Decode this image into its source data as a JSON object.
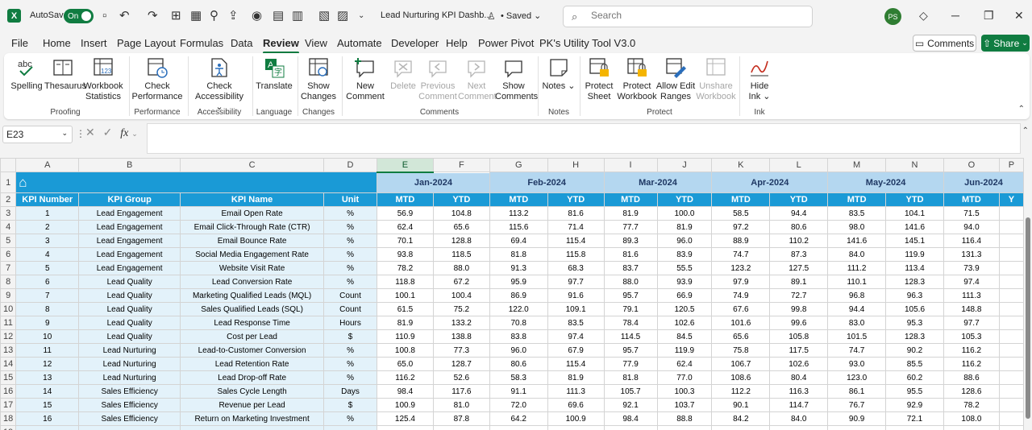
{
  "titlebar": {
    "autosave_label": "AutoSave",
    "autosave_state": "On",
    "doc_title": "Lead Nurturing KPI Dashb...",
    "saved_status": "• Saved ⌄",
    "search_placeholder": "Search",
    "avatar_initials": "PS",
    "accent_color": "#107c41"
  },
  "menu": [
    "File",
    "Home",
    "Insert",
    "Page Layout",
    "Formulas",
    "Data",
    "Review",
    "View",
    "Automate",
    "Developer",
    "Help",
    "Power Pivot",
    "PK's Utility Tool V3.0"
  ],
  "menu_active": "Review",
  "actions": {
    "comments": "Comments",
    "share": "Share"
  },
  "ribbon": {
    "buttons": [
      {
        "label": "Spelling",
        "icon": "spelling-icon",
        "enabled": true
      },
      {
        "label": "Thesaurus",
        "icon": "thesaurus-icon",
        "enabled": true
      },
      {
        "label": "Workbook Statistics",
        "icon": "workbook-statistics-icon",
        "enabled": true
      },
      {
        "label": "Check Performance",
        "icon": "check-performance-icon",
        "enabled": true
      },
      {
        "label": "Check Accessibility ⌄",
        "icon": "accessibility-icon",
        "enabled": true
      },
      {
        "label": "Translate",
        "icon": "translate-icon",
        "enabled": true
      },
      {
        "label": "Show Changes",
        "icon": "show-changes-icon",
        "enabled": true
      },
      {
        "label": "New Comment",
        "icon": "new-comment-icon",
        "enabled": true
      },
      {
        "label": "Delete",
        "icon": "delete-comment-icon",
        "enabled": false
      },
      {
        "label": "Previous Comment",
        "icon": "previous-comment-icon",
        "enabled": false
      },
      {
        "label": "Next Comment",
        "icon": "next-comment-icon",
        "enabled": false
      },
      {
        "label": "Show Comments",
        "icon": "show-comments-icon",
        "enabled": true
      },
      {
        "label": "Notes ⌄",
        "icon": "notes-icon",
        "enabled": true
      },
      {
        "label": "Protect Sheet",
        "icon": "protect-sheet-icon",
        "enabled": true
      },
      {
        "label": "Protect Workbook",
        "icon": "protect-workbook-icon",
        "enabled": true
      },
      {
        "label": "Allow Edit Ranges",
        "icon": "allow-edit-ranges-icon",
        "enabled": true
      },
      {
        "label": "Unshare Workbook",
        "icon": "unshare-workbook-icon",
        "enabled": false
      },
      {
        "label": "Hide Ink ⌄",
        "icon": "hide-ink-icon",
        "enabled": true
      }
    ],
    "groups": [
      "Proofing",
      "Performance",
      "Accessibility",
      "Language",
      "Changes",
      "Comments",
      "Notes",
      "Protect",
      "Ink"
    ]
  },
  "formula_bar": {
    "name_box": "E23",
    "fx": "fx",
    "formula": ""
  },
  "sheet": {
    "columns": [
      "A",
      "B",
      "C",
      "D",
      "E",
      "F",
      "G",
      "H",
      "I",
      "J",
      "K",
      "L",
      "M",
      "N",
      "O",
      "P"
    ],
    "selected_column": "E",
    "months": [
      "Jan-2024",
      "Feb-2024",
      "Mar-2024",
      "Apr-2024",
      "May-2024",
      "Jun-2024"
    ],
    "headers": [
      "KPI Number",
      "KPI Group",
      "KPI Name",
      "Unit",
      "MTD",
      "YTD",
      "MTD",
      "YTD",
      "MTD",
      "YTD",
      "MTD",
      "YTD",
      "MTD",
      "YTD",
      "MTD",
      "Y"
    ],
    "rows": [
      [
        "1",
        "Lead Engagement",
        "Email Open Rate",
        "%",
        "56.9",
        "104.8",
        "113.2",
        "81.6",
        "81.9",
        "100.0",
        "58.5",
        "94.4",
        "83.5",
        "104.1",
        "71.5",
        ""
      ],
      [
        "2",
        "Lead Engagement",
        "Email Click-Through Rate (CTR)",
        "%",
        "62.4",
        "65.6",
        "115.6",
        "71.4",
        "77.7",
        "81.9",
        "97.2",
        "80.6",
        "98.0",
        "141.6",
        "94.0",
        ""
      ],
      [
        "3",
        "Lead Engagement",
        "Email Bounce Rate",
        "%",
        "70.1",
        "128.8",
        "69.4",
        "115.4",
        "89.3",
        "96.0",
        "88.9",
        "110.2",
        "141.6",
        "145.1",
        "116.4",
        ""
      ],
      [
        "4",
        "Lead Engagement",
        "Social Media Engagement Rate",
        "%",
        "93.8",
        "118.5",
        "81.8",
        "115.8",
        "81.6",
        "83.9",
        "74.7",
        "87.3",
        "84.0",
        "119.9",
        "131.3",
        ""
      ],
      [
        "5",
        "Lead Engagement",
        "Website Visit Rate",
        "%",
        "78.2",
        "88.0",
        "91.3",
        "68.3",
        "83.7",
        "55.5",
        "123.2",
        "127.5",
        "111.2",
        "113.4",
        "73.9",
        ""
      ],
      [
        "6",
        "Lead Quality",
        "Lead Conversion Rate",
        "%",
        "118.8",
        "67.2",
        "95.9",
        "97.7",
        "88.0",
        "93.9",
        "97.9",
        "89.1",
        "110.1",
        "128.3",
        "97.4",
        ""
      ],
      [
        "7",
        "Lead Quality",
        "Marketing Qualified Leads (MQL)",
        "Count",
        "100.1",
        "100.4",
        "86.9",
        "91.6",
        "95.7",
        "66.9",
        "74.9",
        "72.7",
        "96.8",
        "96.3",
        "111.3",
        ""
      ],
      [
        "8",
        "Lead Quality",
        "Sales Qualified Leads (SQL)",
        "Count",
        "61.5",
        "75.2",
        "122.0",
        "109.1",
        "79.1",
        "120.5",
        "67.6",
        "99.8",
        "94.4",
        "105.6",
        "148.8",
        ""
      ],
      [
        "9",
        "Lead Quality",
        "Lead Response Time",
        "Hours",
        "81.9",
        "133.2",
        "70.8",
        "83.5",
        "78.4",
        "102.6",
        "101.6",
        "99.6",
        "83.0",
        "95.3",
        "97.7",
        ""
      ],
      [
        "10",
        "Lead Quality",
        "Cost per Lead",
        "$",
        "110.9",
        "138.8",
        "83.8",
        "97.4",
        "114.5",
        "84.5",
        "65.6",
        "105.8",
        "101.5",
        "128.3",
        "105.3",
        ""
      ],
      [
        "11",
        "Lead Nurturing",
        "Lead-to-Customer Conversion",
        "%",
        "100.8",
        "77.3",
        "96.0",
        "67.9",
        "95.7",
        "119.9",
        "75.8",
        "117.5",
        "74.7",
        "90.2",
        "116.2",
        ""
      ],
      [
        "12",
        "Lead Nurturing",
        "Lead Retention Rate",
        "%",
        "65.0",
        "128.7",
        "80.6",
        "115.4",
        "77.9",
        "62.4",
        "106.7",
        "102.6",
        "93.0",
        "85.5",
        "116.2",
        ""
      ],
      [
        "13",
        "Lead Nurturing",
        "Lead Drop-off Rate",
        "%",
        "116.2",
        "52.6",
        "58.3",
        "81.9",
        "81.8",
        "77.0",
        "108.6",
        "80.4",
        "123.0",
        "60.2",
        "88.6",
        ""
      ],
      [
        "14",
        "Sales Efficiency",
        "Sales Cycle Length",
        "Days",
        "98.4",
        "117.6",
        "91.1",
        "111.3",
        "105.7",
        "100.3",
        "112.2",
        "116.3",
        "86.1",
        "95.5",
        "128.6",
        ""
      ],
      [
        "15",
        "Sales Efficiency",
        "Revenue per Lead",
        "$",
        "100.9",
        "81.0",
        "72.0",
        "69.6",
        "92.1",
        "103.7",
        "90.1",
        "114.7",
        "76.7",
        "92.9",
        "78.2",
        ""
      ],
      [
        "16",
        "Sales Efficiency",
        "Return on Marketing Investment",
        "%",
        "125.4",
        "87.8",
        "64.2",
        "100.9",
        "98.4",
        "88.8",
        "84.2",
        "84.0",
        "90.9",
        "72.1",
        "108.0",
        ""
      ]
    ]
  }
}
